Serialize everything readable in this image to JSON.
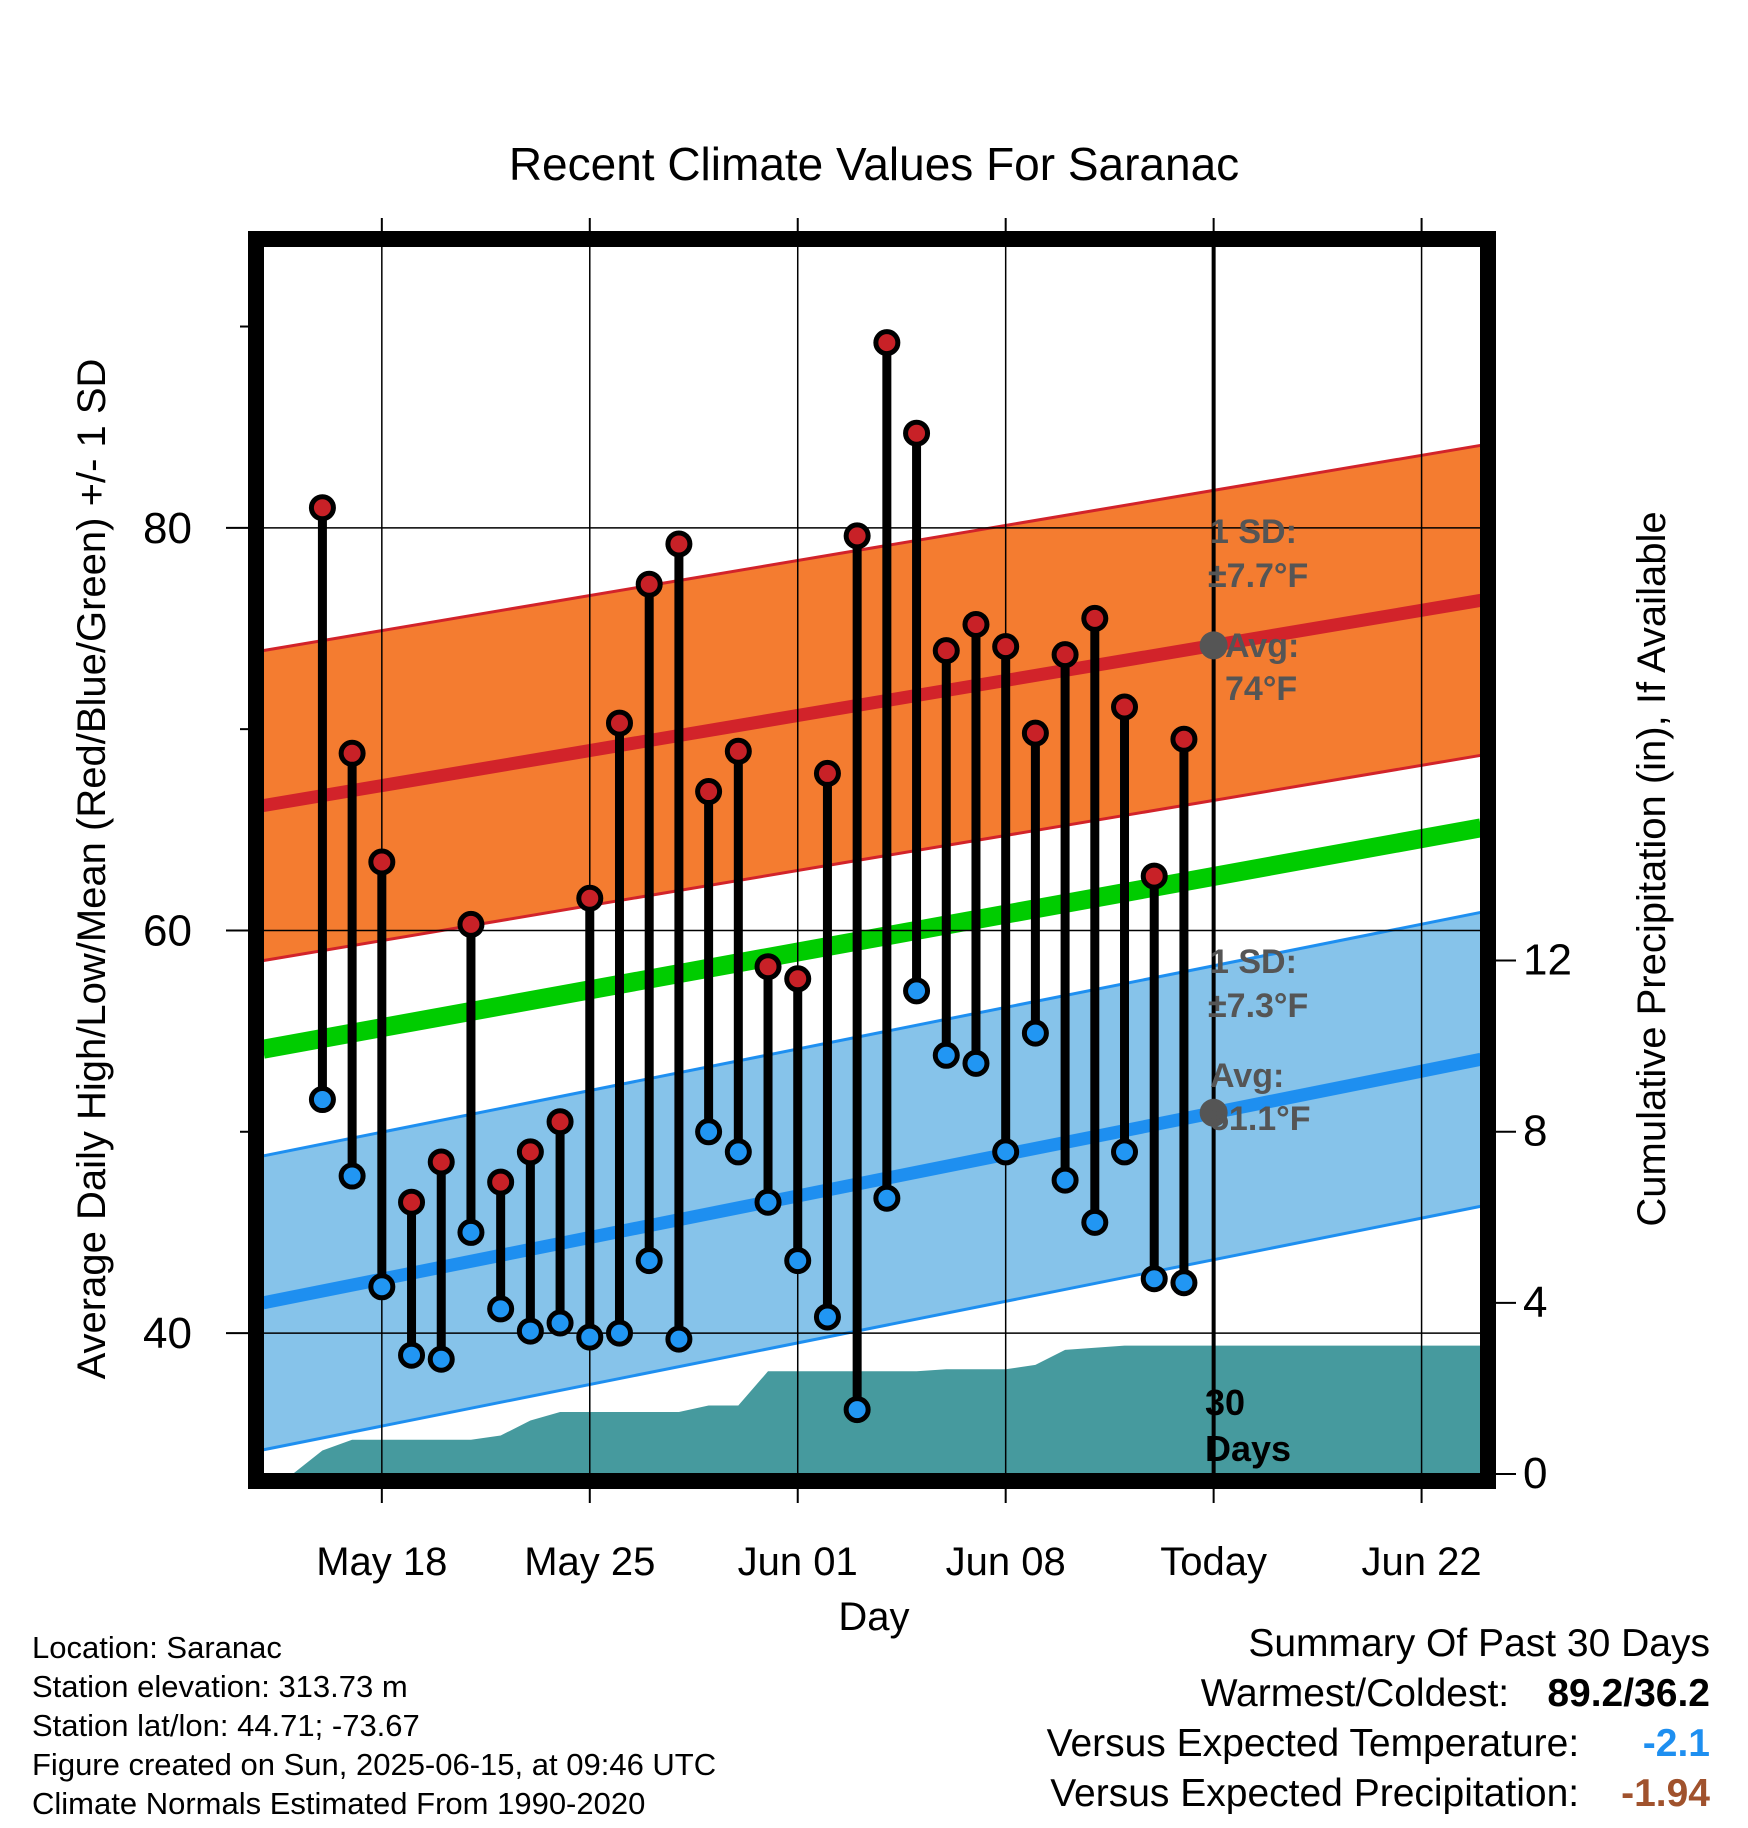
{
  "chart_data": {
    "type": "line",
    "title": "Recent Climate Values For Saranac",
    "xlabel": "Day",
    "ylabel": "Average Daily High/Low/Mean (Red/Blue/Green) +/- 1 SD",
    "y2label": "Cumulative Precipitation (in), If Available",
    "x_tick_labels": [
      "May 18",
      "May 25",
      "Jun 01",
      "Jun 08",
      "Today",
      "Jun 22"
    ],
    "x_tick_dates": [
      "2025-05-18",
      "2025-05-25",
      "2025-06-01",
      "2025-06-08",
      "2025-06-15",
      "2025-06-22"
    ],
    "x_range": [
      "2025-05-14",
      "2025-06-24"
    ],
    "ylim": [
      33,
      94
    ],
    "y_ticks": [
      40,
      60,
      80
    ],
    "y2lim": [
      0,
      28.7
    ],
    "y2_ticks": [
      0,
      4,
      8,
      12
    ],
    "today": "2025-06-15",
    "grid": true,
    "dates": [
      "2025-05-16",
      "2025-05-17",
      "2025-05-18",
      "2025-05-19",
      "2025-05-20",
      "2025-05-21",
      "2025-05-22",
      "2025-05-23",
      "2025-05-24",
      "2025-05-25",
      "2025-05-26",
      "2025-05-27",
      "2025-05-28",
      "2025-05-29",
      "2025-05-30",
      "2025-05-31",
      "2025-06-01",
      "2025-06-02",
      "2025-06-03",
      "2025-06-04",
      "2025-06-05",
      "2025-06-06",
      "2025-06-07",
      "2025-06-08",
      "2025-06-09",
      "2025-06-10",
      "2025-06-11",
      "2025-06-12",
      "2025-06-13",
      "2025-06-14"
    ],
    "series": [
      {
        "name": "High",
        "values": [
          81.0,
          68.8,
          63.4,
          46.5,
          48.5,
          60.3,
          47.5,
          49.0,
          50.5,
          61.6,
          70.3,
          77.2,
          79.2,
          66.9,
          68.9,
          58.2,
          57.6,
          67.8,
          79.6,
          89.2,
          84.7,
          73.9,
          75.2,
          74.1,
          69.8,
          73.7,
          75.5,
          71.1,
          62.7,
          69.5
        ]
      },
      {
        "name": "Low",
        "values": [
          51.6,
          47.8,
          42.3,
          38.9,
          38.7,
          45.0,
          41.2,
          40.1,
          40.5,
          39.8,
          40.0,
          43.6,
          39.7,
          50.0,
          49.0,
          46.5,
          43.6,
          40.8,
          36.2,
          46.7,
          57.0,
          53.8,
          53.4,
          49.0,
          54.9,
          47.6,
          45.5,
          49.0,
          42.7,
          42.5
        ]
      }
    ],
    "normals": {
      "dates": [
        "2025-05-14",
        "2025-06-24"
      ],
      "mean": [
        54.1,
        65.1
      ],
      "high": [
        66.2,
        76.4
      ],
      "low": [
        41.5,
        53.6
      ],
      "high_sd": 7.7,
      "low_sd": 7.3
    },
    "precipitation": {
      "dates": [
        "2025-05-15",
        "2025-05-16",
        "2025-05-17",
        "2025-05-19",
        "2025-05-21",
        "2025-05-22",
        "2025-05-23",
        "2025-05-24",
        "2025-05-28",
        "2025-05-29",
        "2025-05-30",
        "2025-05-31",
        "2025-06-05",
        "2025-06-06",
        "2025-06-08",
        "2025-06-09",
        "2025-06-10",
        "2025-06-12",
        "2025-06-14",
        "2025-06-24"
      ],
      "values": [
        0.0,
        0.55,
        0.8,
        0.8,
        0.8,
        0.9,
        1.25,
        1.45,
        1.45,
        1.6,
        1.6,
        2.4,
        2.4,
        2.45,
        2.45,
        2.55,
        2.9,
        3.0,
        3.0,
        3.0
      ]
    },
    "annotations": {
      "high_sd": "1 SD:",
      "high_sd_value": "±7.7°F",
      "high_avg": "Avg:",
      "high_avg_value": "74°F",
      "low_sd": "1 SD:",
      "low_sd_value": "±7.3°F",
      "low_avg": "Avg:",
      "low_avg_value": "51.1°F",
      "days_label_1": "30",
      "days_label_2": "Days"
    },
    "colors": {
      "high_band": "#f47c30",
      "high_line": "#d2232a",
      "low_band": "#86c3ea",
      "low_line": "#1e8ff0",
      "mean_line": "#00cc00",
      "precip": "#469a9e",
      "high_dot": "#c82127",
      "low_dot": "#2196f3",
      "avg_marker": "#555555"
    }
  },
  "footer": {
    "location": "Location: Saranac",
    "elevation": "Station elevation: 313.73 m",
    "latlon": "Station lat/lon: 44.71; -73.67",
    "created": "Figure created on Sun, 2025-06-15, at 09:46 UTC",
    "normals": "Climate Normals Estimated From 1990-2020"
  },
  "summary": {
    "title": "Summary Of Past 30 Days",
    "warm_cold_label": "Warmest/Coldest:",
    "warm_cold_value": "89.2/36.2",
    "temp_label": "Versus Expected Temperature:",
    "temp_value": "-2.1",
    "temp_color": "#1e8ff0",
    "precip_label": "Versus Expected Precipitation:",
    "precip_value": "-1.94",
    "precip_color": "#a0522d"
  }
}
